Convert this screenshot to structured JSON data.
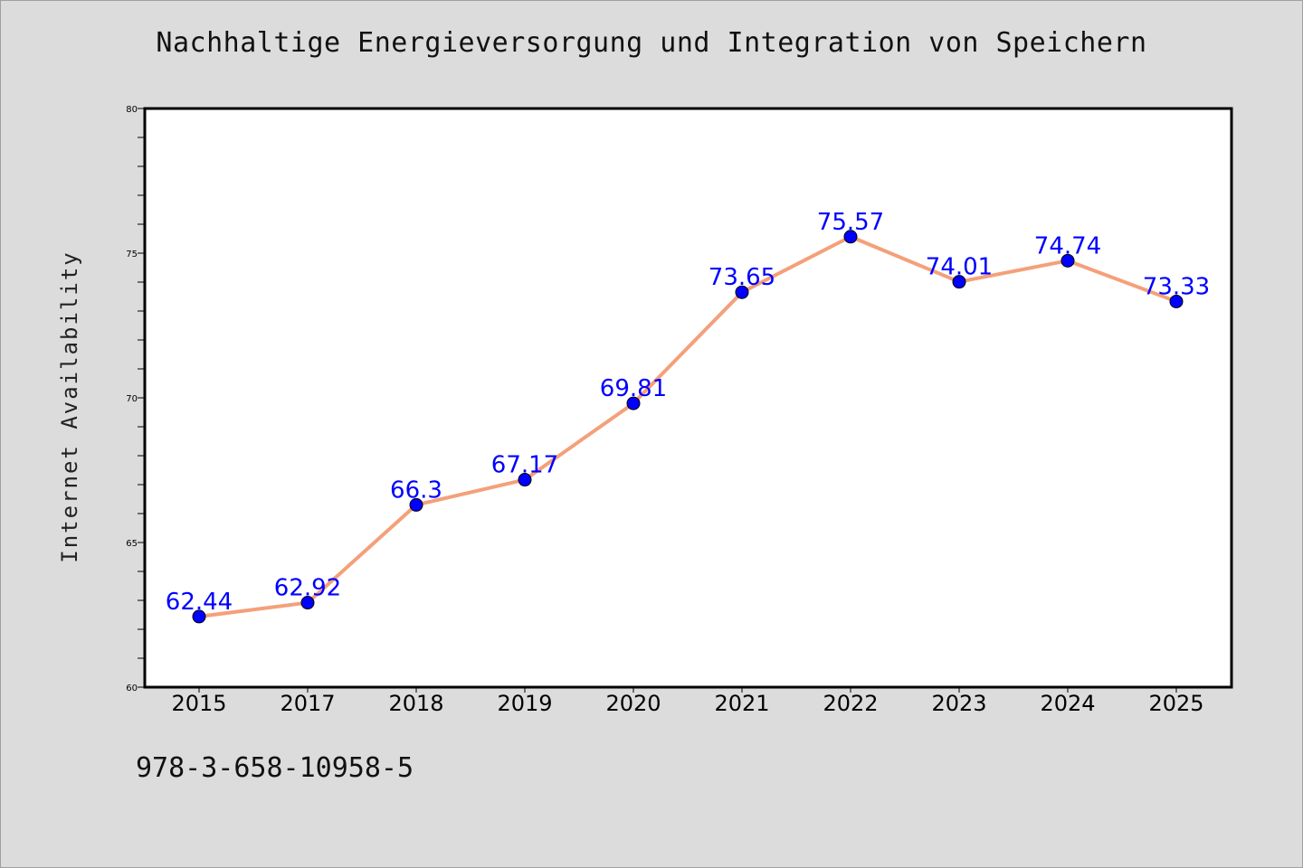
{
  "title": "Nachhaltige Energieversorgung und Integration von Speichern",
  "footer_text": "978-3-658-10958-5",
  "chart_data": {
    "type": "line",
    "title": "Nachhaltige Energieversorgung und Integration von Speichern",
    "xlabel": "",
    "ylabel": "Internet Availability",
    "categories": [
      "2015",
      "2017",
      "2018",
      "2019",
      "2020",
      "2021",
      "2022",
      "2023",
      "2024",
      "2025"
    ],
    "series": [
      {
        "values": [
          62.44,
          62.92,
          66.3,
          67.17,
          69.81,
          73.65,
          75.57,
          74.01,
          74.74,
          73.33
        ],
        "labels": [
          "62.44",
          "62.92",
          "66.3",
          "67.17",
          "69.81",
          "73.65",
          "75.57",
          "74.01",
          "74.74",
          "73.33"
        ],
        "line_color": "#f4a07a",
        "marker_color": "#0000ff"
      }
    ],
    "ylim": [
      60,
      80
    ],
    "y_ticks": [
      60,
      65,
      70,
      75,
      80
    ],
    "y_tick_labels": [
      "60",
      "65",
      "70",
      "75",
      "80"
    ],
    "grid": false,
    "legend": "none"
  }
}
